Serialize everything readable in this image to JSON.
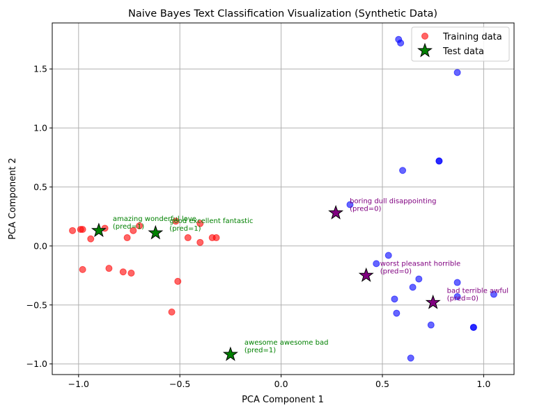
{
  "chart_data": {
    "type": "scatter",
    "title": "Naive Bayes Text Classification Visualization (Synthetic Data)",
    "xlabel": "PCA Component 1",
    "ylabel": "PCA Component 2",
    "xlim": [
      -1.13,
      1.15
    ],
    "ylim": [
      -1.09,
      1.89
    ],
    "xticks": [
      -1.0,
      -0.5,
      0.0,
      0.5,
      1.0
    ],
    "xtick_labels": [
      "−1.0",
      "−0.5",
      "0.0",
      "0.5",
      "1.0"
    ],
    "yticks": [
      -1.0,
      -0.5,
      0.0,
      0.5,
      1.0,
      1.5
    ],
    "ytick_labels": [
      "−1.0",
      "−0.5",
      "0.0",
      "0.5",
      "1.0",
      "1.5"
    ],
    "grid": true,
    "legend_position": "top-right",
    "legend": [
      "Training data",
      "Test data"
    ],
    "colors": {
      "class_1": "#ff0000",
      "class_0": "#0000ff",
      "test_pred_1": "#008000",
      "test_pred_0": "#800080",
      "grid": "#b0b0b0"
    },
    "series": [
      {
        "name": "Training data",
        "marker": "circle",
        "points": [
          {
            "x": -1.03,
            "y": 0.13,
            "class": 1
          },
          {
            "x": -0.99,
            "y": 0.14,
            "class": 1
          },
          {
            "x": -0.98,
            "y": 0.14,
            "class": 1
          },
          {
            "x": -0.98,
            "y": -0.2,
            "class": 1
          },
          {
            "x": -0.94,
            "y": 0.06,
            "class": 1
          },
          {
            "x": -0.87,
            "y": 0.15,
            "class": 1
          },
          {
            "x": -0.85,
            "y": -0.19,
            "class": 1
          },
          {
            "x": -0.78,
            "y": -0.22,
            "class": 1
          },
          {
            "x": -0.76,
            "y": 0.07,
            "class": 1
          },
          {
            "x": -0.74,
            "y": -0.23,
            "class": 1
          },
          {
            "x": -0.73,
            "y": 0.13,
            "class": 1
          },
          {
            "x": -0.7,
            "y": 0.17,
            "class": 1
          },
          {
            "x": -0.54,
            "y": -0.56,
            "class": 1
          },
          {
            "x": -0.52,
            "y": 0.21,
            "class": 1
          },
          {
            "x": -0.51,
            "y": -0.3,
            "class": 1
          },
          {
            "x": -0.46,
            "y": 0.07,
            "class": 1
          },
          {
            "x": -0.4,
            "y": 0.03,
            "class": 1
          },
          {
            "x": -0.4,
            "y": 0.19,
            "class": 1
          },
          {
            "x": -0.34,
            "y": 0.07,
            "class": 1
          },
          {
            "x": -0.32,
            "y": 0.07,
            "class": 1
          },
          {
            "x": 0.34,
            "y": 0.35,
            "class": 0
          },
          {
            "x": 0.47,
            "y": -0.15,
            "class": 0
          },
          {
            "x": 0.53,
            "y": -0.08,
            "class": 0
          },
          {
            "x": 0.56,
            "y": -0.45,
            "class": 0
          },
          {
            "x": 0.57,
            "y": -0.57,
            "class": 0
          },
          {
            "x": 0.58,
            "y": 1.75,
            "class": 0
          },
          {
            "x": 0.59,
            "y": 1.72,
            "class": 0
          },
          {
            "x": 0.6,
            "y": 0.64,
            "class": 0
          },
          {
            "x": 0.64,
            "y": -0.95,
            "class": 0
          },
          {
            "x": 0.65,
            "y": -0.35,
            "class": 0
          },
          {
            "x": 0.68,
            "y": -0.28,
            "class": 0
          },
          {
            "x": 0.74,
            "y": -0.67,
            "class": 0
          },
          {
            "x": 0.78,
            "y": 0.72,
            "class": 0
          },
          {
            "x": 0.78,
            "y": 0.72,
            "class": 0
          },
          {
            "x": 0.87,
            "y": 1.47,
            "class": 0
          },
          {
            "x": 0.87,
            "y": -0.31,
            "class": 0
          },
          {
            "x": 0.87,
            "y": -0.43,
            "class": 0
          },
          {
            "x": 0.95,
            "y": -0.69,
            "class": 0
          },
          {
            "x": 0.95,
            "y": -0.69,
            "class": 0
          },
          {
            "x": 1.05,
            "y": -0.41,
            "class": 0
          }
        ]
      },
      {
        "name": "Test data",
        "marker": "star",
        "points": [
          {
            "x": -0.9,
            "y": 0.13,
            "pred": 1,
            "label": "amazing wonderful love\n(pred=1)"
          },
          {
            "x": -0.62,
            "y": 0.11,
            "pred": 1,
            "label": "good excellent fantastic\n(pred=1)"
          },
          {
            "x": -0.25,
            "y": -0.92,
            "pred": 1,
            "label": "awesome awesome bad\n(pred=1)"
          },
          {
            "x": 0.27,
            "y": 0.28,
            "pred": 0,
            "label": "boring dull disappointing\n(pred=0)"
          },
          {
            "x": 0.42,
            "y": -0.25,
            "pred": 0,
            "label": "worst pleasant horrible\n(pred=0)"
          },
          {
            "x": 0.75,
            "y": -0.48,
            "pred": 0,
            "label": "bad terrible awful\n(pred=0)"
          }
        ]
      }
    ]
  }
}
